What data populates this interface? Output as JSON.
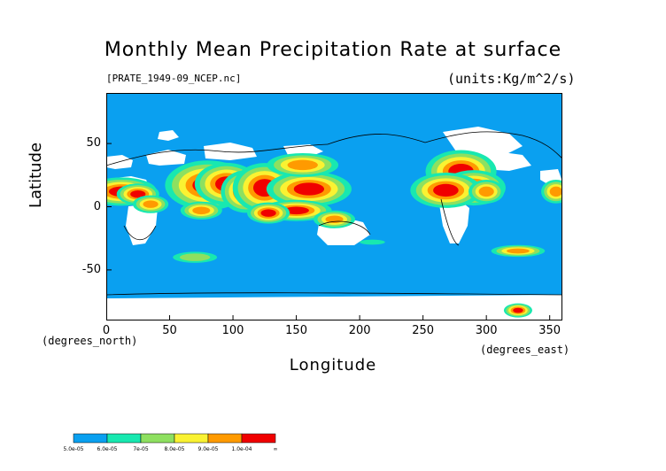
{
  "chart_data": {
    "type": "heatmap",
    "title": "Monthly Mean Precipitation Rate at surface",
    "subtitle_left": "[PRATE_1949-09_NCEP.nc]",
    "subtitle_right": "(units:Kg/m^2/s)",
    "xlabel": "Longitude",
    "ylabel": "Latitude",
    "x_unit_note": "(degrees_north)",
    "y_unit_note": "(degrees_east)",
    "xlim": [
      0,
      360
    ],
    "ylim": [
      -90,
      90
    ],
    "x_ticks": [
      "0",
      "50",
      "100",
      "150",
      "200",
      "250",
      "300",
      "350"
    ],
    "x_tick_values": [
      0,
      50,
      100,
      150,
      200,
      250,
      300,
      350
    ],
    "y_ticks": [
      "50",
      "0",
      "-50"
    ],
    "y_tick_values": [
      50,
      0,
      -50
    ],
    "colorbar": {
      "labels": [
        "5.0e-05",
        "6.0e-05",
        "7e-05",
        "8.0e-05",
        "9.0e-05",
        "1.0e-04",
        "∞"
      ],
      "colors": [
        "#0aa0f0",
        "#18e8b0",
        "#8ee060",
        "#faf232",
        "#ff9a00",
        "#f00000"
      ]
    },
    "colors": {
      "ocean": "#0aa0f0",
      "land_missing": "#ffffff",
      "level_1": "#18e8b0",
      "level_2": "#8ee060",
      "level_3": "#faf232",
      "level_4": "#ff9a00",
      "level_5": "#f00000"
    },
    "precip_regions": [
      {
        "lon": 12,
        "lat": 12,
        "rx": 10,
        "ry": 4,
        "level": 5
      },
      {
        "lon": 25,
        "lat": 10,
        "rx": 6,
        "ry": 3,
        "level": 5
      },
      {
        "lon": 35,
        "lat": 2,
        "rx": 6,
        "ry": 3,
        "level": 4
      },
      {
        "lon": 80,
        "lat": 17,
        "rx": 12,
        "ry": 7,
        "level": 5
      },
      {
        "lon": 95,
        "lat": 18,
        "rx": 9,
        "ry": 6,
        "level": 5
      },
      {
        "lon": 110,
        "lat": 12,
        "rx": 7,
        "ry": 6,
        "level": 5
      },
      {
        "lon": 125,
        "lat": 15,
        "rx": 9,
        "ry": 7,
        "level": 5
      },
      {
        "lon": 160,
        "lat": 14,
        "rx": 12,
        "ry": 5,
        "level": 5
      },
      {
        "lon": 150,
        "lat": -3,
        "rx": 10,
        "ry": 3,
        "level": 5
      },
      {
        "lon": 180,
        "lat": -10,
        "rx": 7,
        "ry": 3,
        "level": 4
      },
      {
        "lon": 155,
        "lat": 33,
        "rx": 12,
        "ry": 4,
        "level": 4
      },
      {
        "lon": 75,
        "lat": -3,
        "rx": 7,
        "ry": 3,
        "level": 4
      },
      {
        "lon": 128,
        "lat": -5,
        "rx": 6,
        "ry": 3,
        "level": 5
      },
      {
        "lon": 280,
        "lat": 28,
        "rx": 10,
        "ry": 6,
        "level": 5
      },
      {
        "lon": 290,
        "lat": 15,
        "rx": 9,
        "ry": 5,
        "level": 5
      },
      {
        "lon": 268,
        "lat": 13,
        "rx": 10,
        "ry": 5,
        "level": 5
      },
      {
        "lon": 300,
        "lat": 12,
        "rx": 6,
        "ry": 4,
        "level": 4
      },
      {
        "lon": 355,
        "lat": 12,
        "rx": 5,
        "ry": 4,
        "level": 4
      },
      {
        "lon": 325,
        "lat": -35,
        "rx": 9,
        "ry": 2,
        "level": 4
      },
      {
        "lon": 70,
        "lat": -40,
        "rx": 12,
        "ry": 3,
        "level": 2
      },
      {
        "lon": 210,
        "lat": -28,
        "rx": 10,
        "ry": 2,
        "level": 1
      },
      {
        "lon": 325,
        "lat": -82,
        "rx": 4,
        "ry": 2,
        "level": 5
      }
    ]
  }
}
